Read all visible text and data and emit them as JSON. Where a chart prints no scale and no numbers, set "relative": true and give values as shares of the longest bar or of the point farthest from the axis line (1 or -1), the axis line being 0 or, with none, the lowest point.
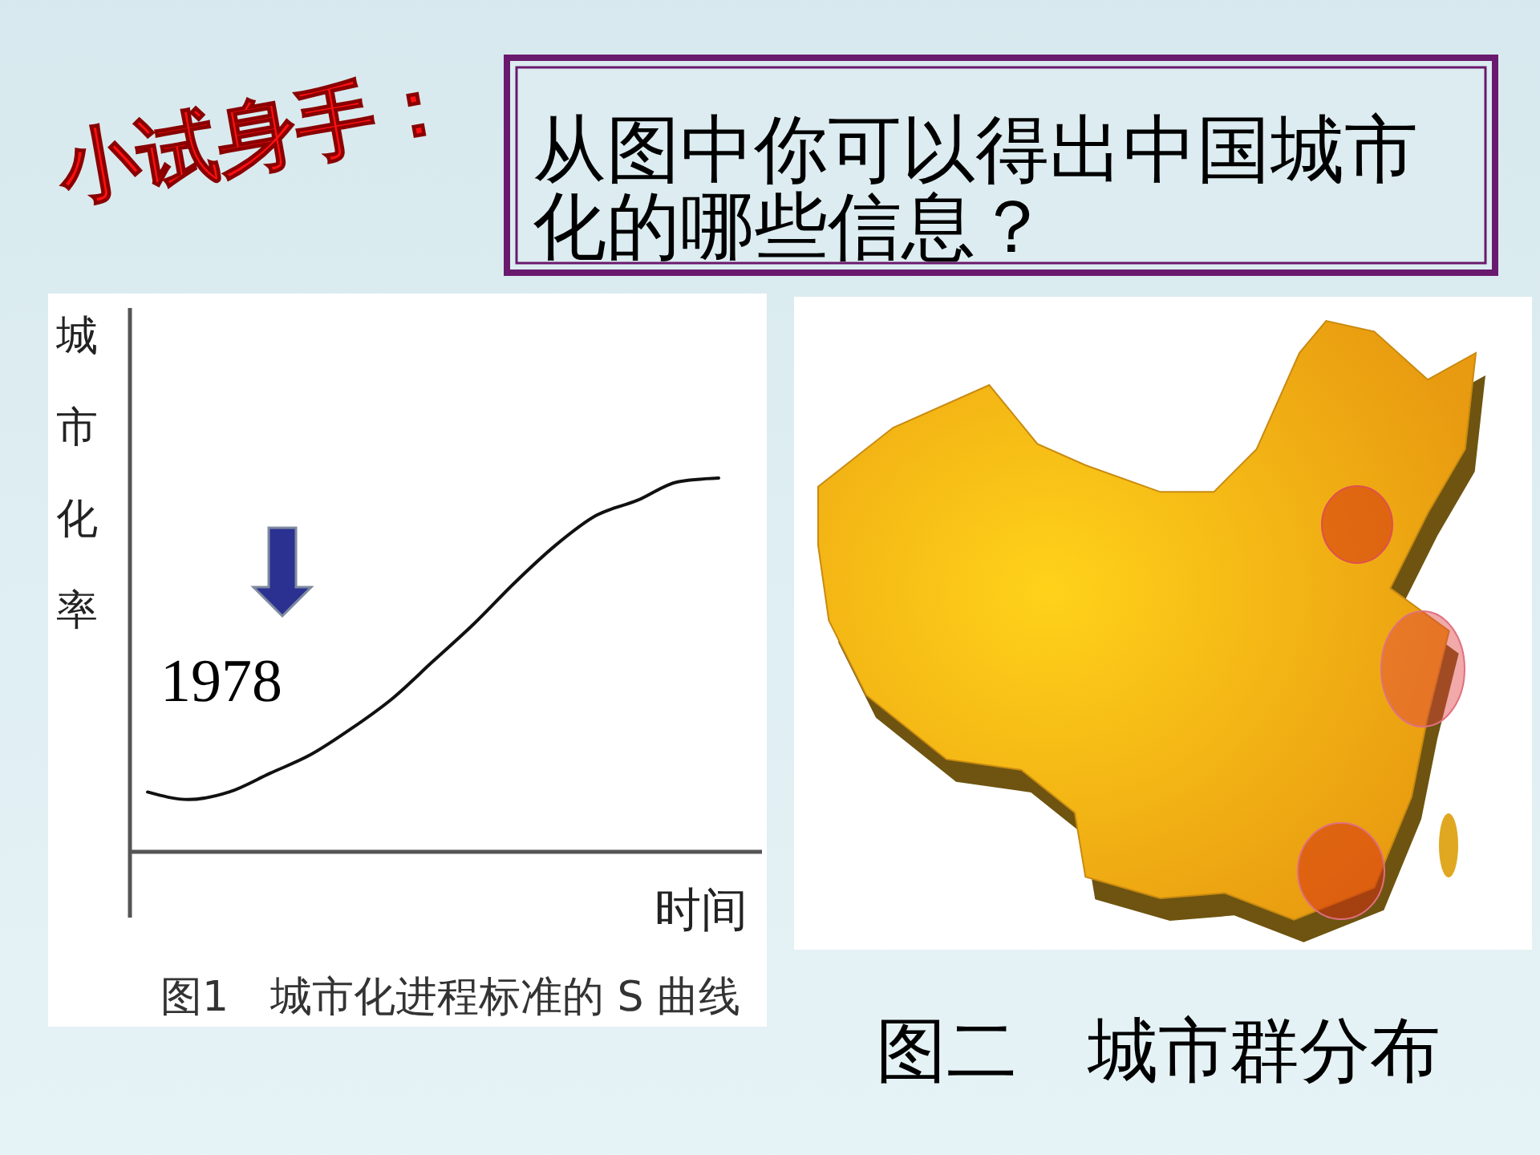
{
  "chart_data": {
    "type": "line",
    "title": "图1　城市化进程标准的 S 曲线",
    "xlabel": "时间",
    "ylabel": "城市化率",
    "categories": [
      null,
      null,
      null,
      null,
      null,
      null,
      null,
      null,
      null,
      null,
      null,
      null,
      null,
      null,
      null
    ],
    "relative": true,
    "series": [
      {
        "color": "#111111",
        "values": [
          0.16,
          0.14,
          0.16,
          0.21,
          0.26,
          0.33,
          0.41,
          0.51,
          0.61,
          0.72,
          0.82,
          0.9,
          0.94,
          0.99,
          1
        ]
      }
    ],
    "annotations": [
      "1978",
      "小试身手：",
      "从图中你可以得出中国城市化的哪些信息？",
      "图二　城市群分布"
    ]
  }
}
